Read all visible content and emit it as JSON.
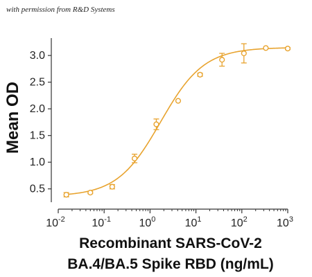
{
  "credit": "with permission from R&D Systems",
  "colors": {
    "series": "#E8A32E",
    "axis": "#333333"
  },
  "chart_data": {
    "type": "scatter",
    "title": "",
    "xlabel_lines": [
      "Recombinant SARS-CoV-2",
      "BA.4/BA.5 Spike RBD (ng/mL)"
    ],
    "ylabel": "Mean OD",
    "x_scale": "log",
    "xlim": [
      0.01,
      1000
    ],
    "ylim": [
      0.25,
      3.3
    ],
    "x_ticks": [
      {
        "value": 0.01,
        "base": "10",
        "exp": "-2"
      },
      {
        "value": 0.1,
        "base": "10",
        "exp": "-1"
      },
      {
        "value": 1,
        "base": "10",
        "exp": "0"
      },
      {
        "value": 10,
        "base": "10",
        "exp": "1"
      },
      {
        "value": 100,
        "base": "10",
        "exp": "2"
      },
      {
        "value": 1000,
        "base": "10",
        "exp": "3"
      }
    ],
    "y_ticks": [
      "0.5",
      "1.0",
      "1.5",
      "2.0",
      "2.5",
      "3.0"
    ],
    "grid": false,
    "series": [
      {
        "points": [
          {
            "x": 0.015,
            "y": 0.39,
            "err": 0.04
          },
          {
            "x": 0.05,
            "y": 0.43,
            "err": 0.02
          },
          {
            "x": 0.15,
            "y": 0.54,
            "err": 0.04
          },
          {
            "x": 0.46,
            "y": 1.07,
            "err": 0.08
          },
          {
            "x": 1.37,
            "y": 1.71,
            "err": 0.1
          },
          {
            "x": 4.1,
            "y": 2.15,
            "err": 0.0
          },
          {
            "x": 12.3,
            "y": 2.64,
            "err": 0.03
          },
          {
            "x": 37,
            "y": 2.92,
            "err": 0.12
          },
          {
            "x": 111,
            "y": 3.04,
            "err": 0.18
          },
          {
            "x": 333,
            "y": 3.14,
            "err": 0.0
          },
          {
            "x": 1000,
            "y": 3.13,
            "err": 0.02
          }
        ],
        "fit": {
          "model": "4PL",
          "bottom": 0.36,
          "top": 3.15,
          "ec50": 1.7,
          "hill": 0.92
        }
      }
    ]
  }
}
